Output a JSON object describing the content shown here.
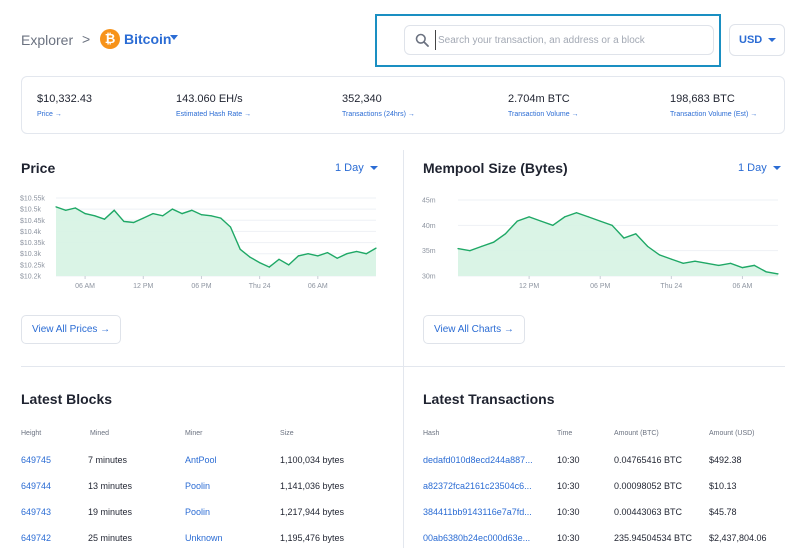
{
  "header": {
    "breadcrumb_root": "Explorer",
    "breadcrumb_sep": ">",
    "coin_symbol": "₿",
    "coin_name": "Bitcoin",
    "search_placeholder": "Search your transaction, an address or a block",
    "currency": "USD"
  },
  "colors": {
    "accent": "#2b6cd4",
    "chart_line": "#1fa866",
    "chart_fill": "#d6f3e3",
    "bitcoin": "#f7931a",
    "focus_frame": "#1a8fc2"
  },
  "stats": [
    {
      "value": "$10,332.43",
      "label": "Price →"
    },
    {
      "value": "143.060 EH/s",
      "label": "Estimated Hash Rate →"
    },
    {
      "value": "352,340",
      "label": "Transactions (24hrs) →"
    },
    {
      "value": "2.704m BTC",
      "label": "Transaction Volume →"
    },
    {
      "value": "198,683 BTC",
      "label": "Transaction Volume (Est) →"
    }
  ],
  "price_panel": {
    "title": "Price",
    "range": "1 Day",
    "button": "View All Prices →"
  },
  "mempool_panel": {
    "title": "Mempool Size (Bytes)",
    "range": "1 Day",
    "button": "View All Charts →"
  },
  "chart_data": [
    {
      "type": "area",
      "title": "Price",
      "y_tick_labels": [
        "$10.55k",
        "$10.5k",
        "$10.45k",
        "$10.4k",
        "$10.35k",
        "$10.3k",
        "$10.25k",
        "$10.2k"
      ],
      "ylim": [
        10200,
        10550
      ],
      "x_tick_labels": [
        "06 AM",
        "12 PM",
        "06 PM",
        "Thu 24",
        "06 AM"
      ],
      "x_tick_positions": [
        3,
        9,
        15,
        21,
        27
      ],
      "xlim": [
        0,
        33
      ],
      "x": [
        0,
        1,
        2,
        3,
        4,
        5,
        6,
        7,
        8,
        9,
        10,
        11,
        12,
        13,
        14,
        15,
        16,
        17,
        18,
        19,
        20,
        21,
        22,
        23,
        24,
        25,
        26,
        27,
        28,
        29,
        30,
        31,
        32,
        33
      ],
      "values": [
        10510,
        10495,
        10505,
        10480,
        10470,
        10455,
        10495,
        10445,
        10440,
        10460,
        10480,
        10470,
        10500,
        10480,
        10495,
        10475,
        10470,
        10460,
        10420,
        10320,
        10285,
        10260,
        10240,
        10275,
        10250,
        10290,
        10300,
        10290,
        10305,
        10280,
        10300,
        10310,
        10300,
        10325
      ],
      "grid": true
    },
    {
      "type": "area",
      "title": "Mempool Size (Bytes)",
      "y_tick_labels": [
        "45m",
        "40m",
        "35m",
        "30m"
      ],
      "ylim": [
        28,
        46
      ],
      "x_tick_labels": [
        "12 PM",
        "06 PM",
        "Thu 24",
        "06 AM"
      ],
      "x_tick_positions": [
        3,
        9,
        15,
        21
      ],
      "xlim": [
        -3,
        24
      ],
      "x": [
        -3,
        -2,
        -1,
        0,
        1,
        2,
        3,
        4,
        5,
        6,
        7,
        8,
        9,
        10,
        11,
        12,
        13,
        14,
        15,
        16,
        17,
        18,
        19,
        20,
        21,
        22,
        23,
        24
      ],
      "values": [
        34.5,
        34,
        35,
        36,
        38,
        41,
        42,
        41,
        40,
        42,
        43,
        42,
        41,
        40,
        37,
        38,
        35,
        33,
        32,
        31,
        31.5,
        31,
        30.5,
        31,
        30,
        30.5,
        29,
        28.5
      ],
      "grid": true
    }
  ],
  "blocks": {
    "title": "Latest Blocks",
    "headers": [
      "Height",
      "Mined",
      "Miner",
      "Size"
    ],
    "rows": [
      [
        "649745",
        "7 minutes",
        "AntPool",
        "1,100,034 bytes"
      ],
      [
        "649744",
        "13 minutes",
        "Poolin",
        "1,141,036 bytes"
      ],
      [
        "649743",
        "19 minutes",
        "Poolin",
        "1,217,944 bytes"
      ],
      [
        "649742",
        "25 minutes",
        "Unknown",
        "1,195,476 bytes"
      ]
    ]
  },
  "transactions": {
    "title": "Latest Transactions",
    "headers": [
      "Hash",
      "Time",
      "Amount (BTC)",
      "Amount (USD)"
    ],
    "rows": [
      [
        "dedafd010d8ecd244a887...",
        "10:30",
        "0.04765416 BTC",
        "$492.38"
      ],
      [
        "a82372fca2161c23504c6...",
        "10:30",
        "0.00098052 BTC",
        "$10.13"
      ],
      [
        "384411bb9143116e7a7fd...",
        "10:30",
        "0.00443063 BTC",
        "$45.78"
      ],
      [
        "00ab6380b24ec000d63e...",
        "10:30",
        "235.94504534 BTC",
        "$2,437,804.06"
      ]
    ]
  }
}
